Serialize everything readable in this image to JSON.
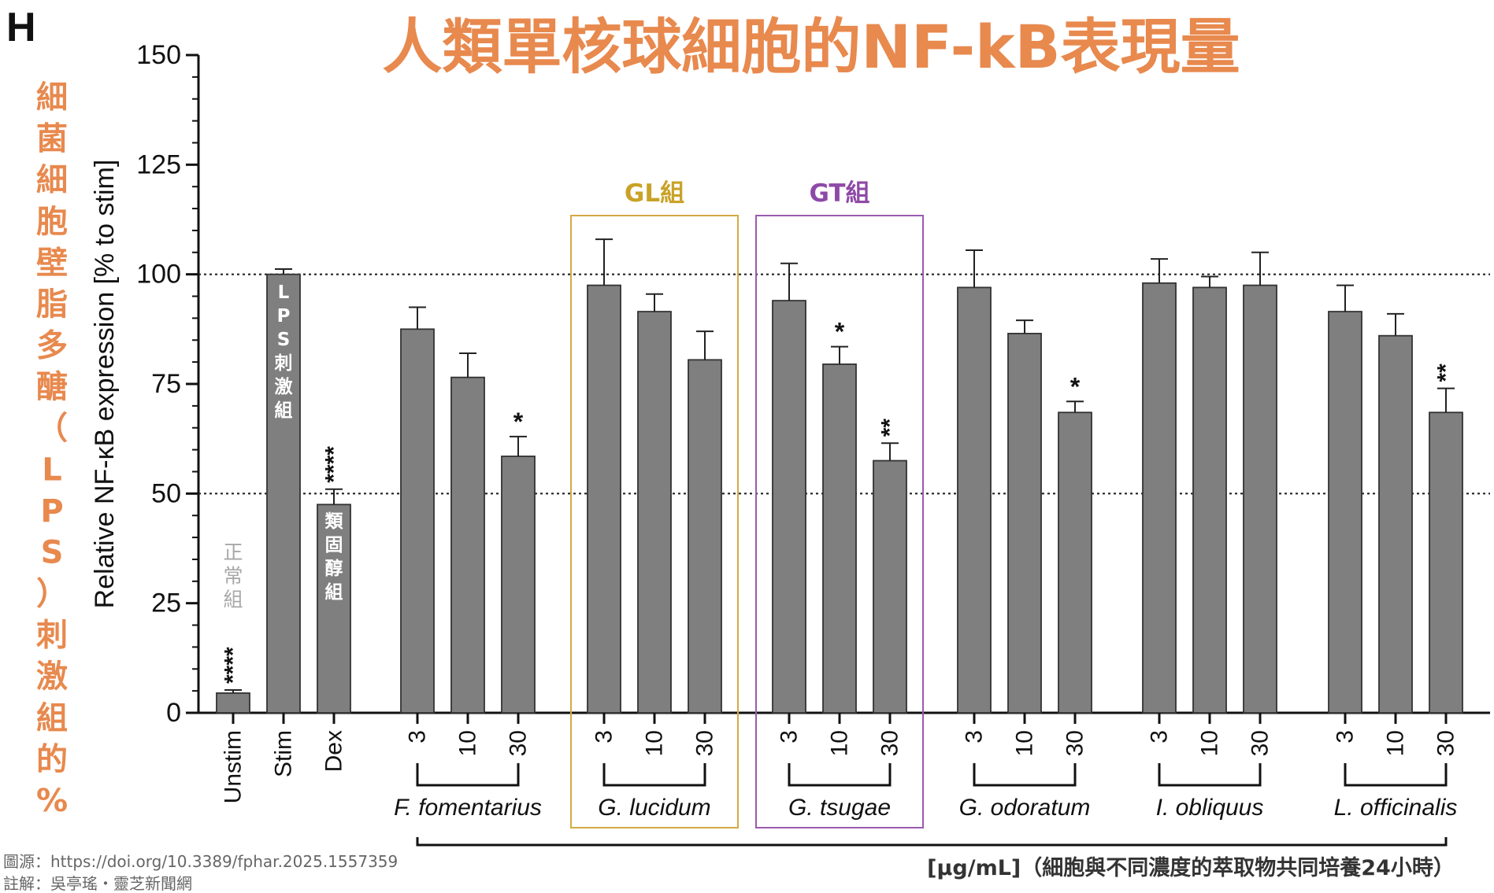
{
  "panel_letter": "H",
  "title": "人類單核球細胞的NF-kB表現量",
  "left_annotation": "細菌細胞壁脂多醣（LPS）刺激組的%",
  "credits": {
    "source": "圖源：https://doi.org/10.3389/fphar.2025.1557359",
    "note": "註解：吳亭瑤・靈芝新聞網"
  },
  "footer_note": "[μg/mL]（細胞與不同濃度的萃取物共同培養24小時）",
  "colors": {
    "title": "#e8894e",
    "bar": "#7f7f7f",
    "gl_box": "#d4aa44",
    "gt_box": "#9a5bb0",
    "gl_label": "#c9a227",
    "gt_label": "#8e4aa6"
  },
  "chart_data": {
    "type": "bar",
    "ylabel": "Relative NF-κB expression [% to stim]",
    "ylim": [
      0,
      150
    ],
    "yticks": [
      0,
      25,
      50,
      75,
      100,
      125,
      150
    ],
    "reference_lines": [
      50,
      100
    ],
    "controls": [
      {
        "label": "Unstim",
        "value": 4.5,
        "error": 0.7,
        "sig": "****",
        "inner_label": "正常組"
      },
      {
        "label": "Stim",
        "value": 100,
        "error": 1.2,
        "sig": "",
        "inner_label": "LPS刺激組"
      },
      {
        "label": "Dex",
        "value": 47.5,
        "error": 3.5,
        "sig": "****",
        "inner_label": "類固醇組"
      }
    ],
    "concentrations": [
      "3",
      "10",
      "30"
    ],
    "groups": [
      {
        "name": "F. fomentarius",
        "values": [
          87.5,
          76.5,
          58.5
        ],
        "errors": [
          5,
          5.5,
          4.5
        ],
        "sig": [
          "",
          "",
          "*"
        ]
      },
      {
        "name": "G. lucidum",
        "values": [
          97.5,
          91.5,
          80.5
        ],
        "errors": [
          10.5,
          4,
          6.5
        ],
        "sig": [
          "",
          "",
          ""
        ],
        "box_label": "GL組"
      },
      {
        "name": "G. tsugae",
        "values": [
          94,
          79.5,
          57.5
        ],
        "errors": [
          8.5,
          4,
          4
        ],
        "sig": [
          "",
          "*",
          "**"
        ],
        "box_label": "GT組"
      },
      {
        "name": "G. odoratum",
        "values": [
          97,
          86.5,
          68.5
        ],
        "errors": [
          8.5,
          3,
          2.5
        ],
        "sig": [
          "",
          "",
          "*"
        ]
      },
      {
        "name": "I. obliquus",
        "values": [
          98,
          97,
          97.5
        ],
        "errors": [
          5.5,
          2.5,
          7.5
        ],
        "sig": [
          "",
          "",
          ""
        ]
      },
      {
        "name": "L. officinalis",
        "values": [
          91.5,
          86,
          68.5
        ],
        "errors": [
          6,
          5,
          5.5
        ],
        "sig": [
          "",
          "",
          "**"
        ]
      }
    ]
  }
}
